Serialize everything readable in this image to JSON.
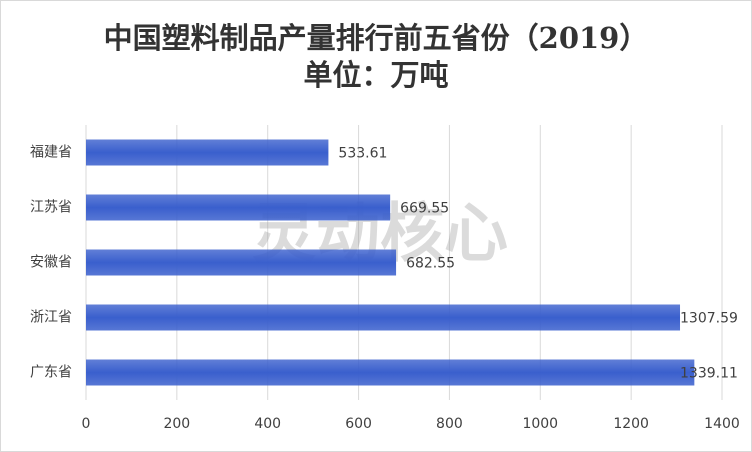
{
  "chart_data": {
    "type": "hbar",
    "title": "中国塑料制品产量排行前五省份（2019）",
    "subtitle": "单位：万吨",
    "watermark": "灵动核心",
    "categories": [
      "福建省",
      "江苏省",
      "安徽省",
      "浙江省",
      "广东省"
    ],
    "values": [
      533.61,
      669.55,
      682.55,
      1307.59,
      1339.11
    ],
    "color": "#3a5fcd",
    "xlim": [
      0,
      1400
    ],
    "xticks": [
      0,
      200,
      400,
      600,
      800,
      1000,
      1200,
      1400
    ],
    "grid": true
  }
}
